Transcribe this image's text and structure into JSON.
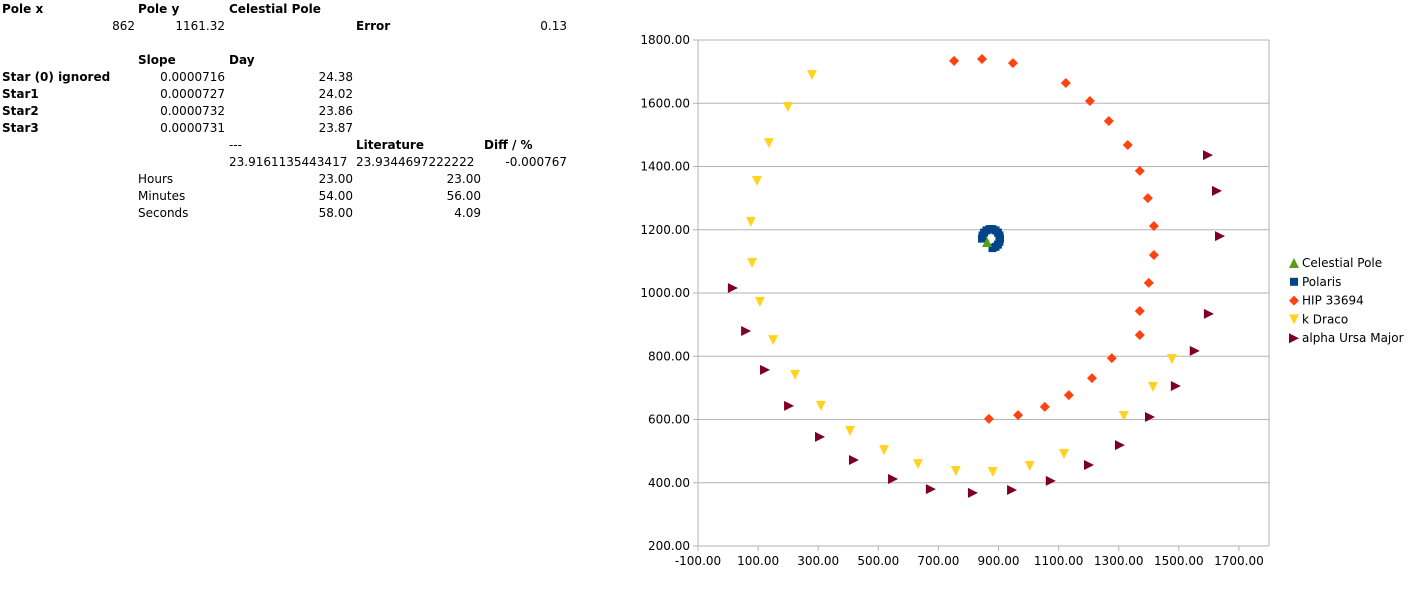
{
  "sheet": {
    "pole_x_label": "Pole x",
    "pole_y_label": "Pole y",
    "celestial_pole_label": "Celestial Pole",
    "pole_x_value": "862",
    "pole_y_value": "1161.32",
    "error_label": "Error",
    "error_value": "0.13",
    "slope_label": "Slope",
    "day_label": "Day",
    "stars": [
      {
        "name": "Star (0) ignored",
        "slope": "0.0000716",
        "day": "24.38"
      },
      {
        "name": "Star1",
        "slope": "0.0000727",
        "day": "24.02"
      },
      {
        "name": "Star2",
        "slope": "0.0000732",
        "day": "23.86"
      },
      {
        "name": "Star3",
        "slope": "0.0000731",
        "day": "23.87"
      }
    ],
    "dashes": "---",
    "literature_label": "Literature",
    "diff_label": "Diff / %",
    "computed_day": "23.9161135443417",
    "literature_day": "23.9344697222222",
    "diff_value": "-0.000767",
    "time_rows": [
      {
        "label": "Hours",
        "computed": "23.00",
        "literature": "23.00"
      },
      {
        "label": "Minutes",
        "computed": "54.00",
        "literature": "56.00"
      },
      {
        "label": "Seconds",
        "computed": "58.00",
        "literature": "4.09"
      }
    ]
  },
  "chart_data": {
    "type": "scatter",
    "title": "",
    "xlabel": "",
    "ylabel": "",
    "xlim": [
      -100,
      1800
    ],
    "ylim": [
      200,
      1800
    ],
    "x_ticks": [
      "-100.00",
      "100.00",
      "300.00",
      "500.00",
      "700.00",
      "900.00",
      "1100.00",
      "1300.00",
      "1500.00",
      "1700.00"
    ],
    "y_ticks": [
      "200.00",
      "400.00",
      "600.00",
      "800.00",
      "1000.00",
      "1200.00",
      "1400.00",
      "1600.00",
      "1800.00"
    ],
    "grid": "horizontal",
    "legend": "right",
    "series": [
      {
        "name": "Celestial Pole",
        "marker": "triangle-up",
        "color": "#579d1c",
        "points": [
          [
            862,
            1161.32
          ]
        ]
      },
      {
        "name": "Polaris",
        "marker": "square",
        "color": "#004586",
        "points": [
          [
            845,
            1172
          ],
          [
            847,
            1182
          ],
          [
            852,
            1191
          ],
          [
            860,
            1198
          ],
          [
            870,
            1202
          ],
          [
            880,
            1202
          ],
          [
            890,
            1198
          ],
          [
            898,
            1191
          ],
          [
            903,
            1182
          ],
          [
            905,
            1172
          ],
          [
            903,
            1162
          ],
          [
            898,
            1153
          ],
          [
            890,
            1146
          ],
          [
            880,
            1142
          ]
        ]
      },
      {
        "name": "HIP 33694",
        "marker": "diamond",
        "color": "#ff420e",
        "points": [
          [
            752,
            1734
          ],
          [
            845,
            1740
          ],
          [
            948,
            1727
          ],
          [
            1124,
            1664
          ],
          [
            1204,
            1607
          ],
          [
            1267,
            1544
          ],
          [
            1330,
            1468
          ],
          [
            1370,
            1386
          ],
          [
            1397,
            1300
          ],
          [
            1417,
            1212
          ],
          [
            1417,
            1120
          ],
          [
            1400,
            1032
          ],
          [
            1370,
            943
          ],
          [
            1370,
            867
          ],
          [
            1277,
            794
          ],
          [
            1211,
            731
          ],
          [
            1134,
            677
          ],
          [
            1054,
            640
          ],
          [
            965,
            614
          ],
          [
            868,
            602
          ]
        ]
      },
      {
        "name": "k Draco",
        "marker": "triangle-down",
        "color": "#ffd320",
        "points": [
          [
            279,
            1689
          ],
          [
            199,
            1588
          ],
          [
            136,
            1474
          ],
          [
            96,
            1354
          ],
          [
            76,
            1225
          ],
          [
            80,
            1095
          ],
          [
            106,
            972
          ],
          [
            150,
            851
          ],
          [
            223,
            741
          ],
          [
            309,
            643
          ],
          [
            406,
            564
          ],
          [
            519,
            503
          ],
          [
            632,
            459
          ],
          [
            758,
            437
          ],
          [
            881,
            434
          ],
          [
            1004,
            453
          ],
          [
            1118,
            491
          ],
          [
            1317,
            611
          ],
          [
            1414,
            703
          ],
          [
            1477,
            791
          ]
        ]
      },
      {
        "name": "alpha Ursa Major",
        "marker": "triangle-right",
        "color": "#7e0021",
        "points": [
          [
            1597,
            1436
          ],
          [
            1627,
            1323
          ],
          [
            1637,
            1180
          ],
          [
            1600,
            934
          ],
          [
            1553,
            817
          ],
          [
            1490,
            706
          ],
          [
            1404,
            608
          ],
          [
            1304,
            519
          ],
          [
            1201,
            456
          ],
          [
            1074,
            406
          ],
          [
            945,
            377
          ],
          [
            815,
            368
          ],
          [
            675,
            380
          ],
          [
            549,
            412
          ],
          [
            419,
            472
          ],
          [
            306,
            545
          ],
          [
            203,
            643
          ],
          [
            123,
            757
          ],
          [
            60,
            880
          ],
          [
            16,
            1016
          ]
        ]
      }
    ]
  }
}
